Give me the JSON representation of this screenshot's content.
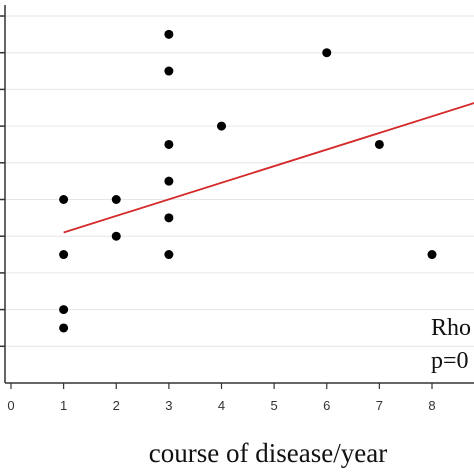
{
  "chart_data": {
    "type": "scatter",
    "title": "",
    "xlabel": "course of disease/year",
    "ylabel": "",
    "x_ticks": [
      0,
      1,
      2,
      3,
      4,
      5,
      6,
      7,
      8
    ],
    "xlim": [
      -0.1,
      8.85
    ],
    "ylim": [
      0,
      10.3
    ],
    "grid": true,
    "gridlines_y": [
      1,
      2,
      3,
      4,
      5,
      6,
      7,
      8,
      9,
      10
    ],
    "points": [
      {
        "x": 1,
        "y": 2
      },
      {
        "x": 1,
        "y": 1.5
      },
      {
        "x": 1,
        "y": 3.5
      },
      {
        "x": 1,
        "y": 5
      },
      {
        "x": 2,
        "y": 5
      },
      {
        "x": 2,
        "y": 4
      },
      {
        "x": 3,
        "y": 9.5
      },
      {
        "x": 3,
        "y": 8.5
      },
      {
        "x": 3,
        "y": 6.5
      },
      {
        "x": 3,
        "y": 5.5
      },
      {
        "x": 3,
        "y": 4.5
      },
      {
        "x": 3,
        "y": 3.5
      },
      {
        "x": 4,
        "y": 7
      },
      {
        "x": 6,
        "y": 9
      },
      {
        "x": 7,
        "y": 6.5
      },
      {
        "x": 8,
        "y": 3.5
      }
    ],
    "fit_line": {
      "x": [
        1,
        8.85
      ],
      "y": [
        4.1,
        7.65
      ],
      "color": "#d42a2a"
    },
    "point_color": "#000000",
    "annotations": [
      "Rho",
      "p=0"
    ]
  }
}
